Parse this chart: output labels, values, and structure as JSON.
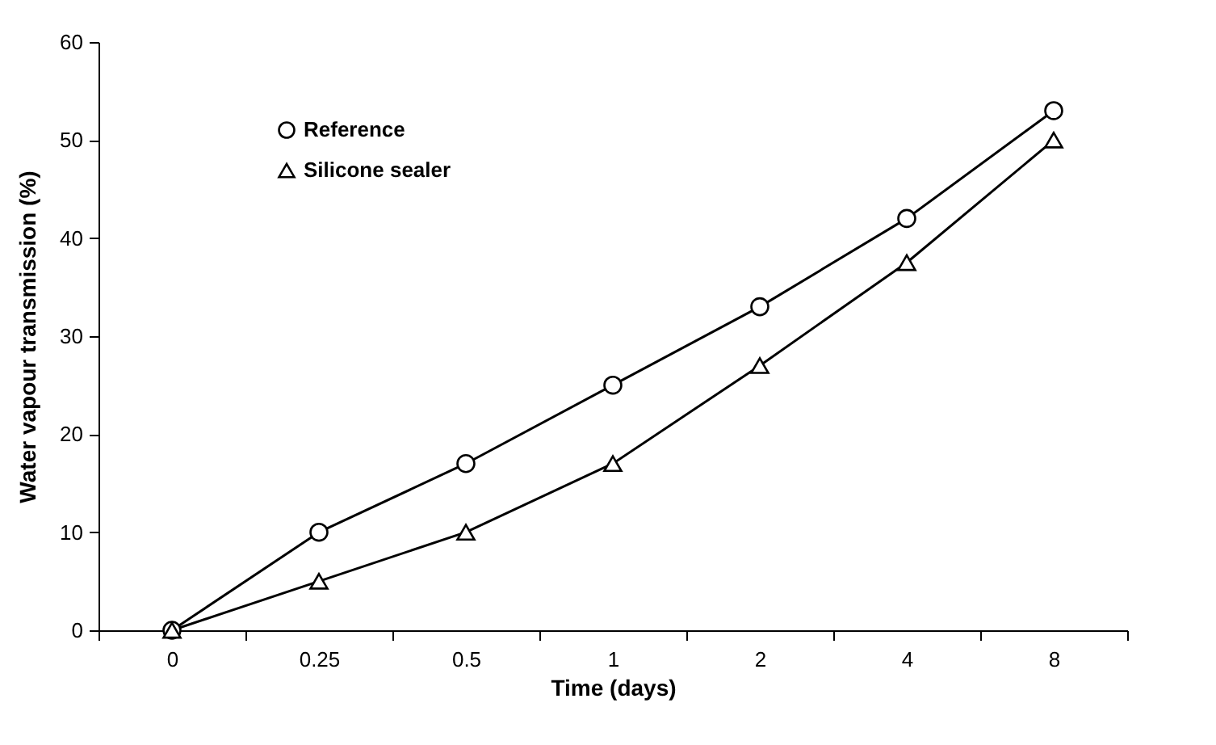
{
  "chart_data": {
    "type": "line",
    "xlabel": "Time (days)",
    "ylabel": "Water vapour transmission (%)",
    "categories": [
      "0",
      "0.25",
      "0.5",
      "1",
      "2",
      "4",
      "8"
    ],
    "ylim": [
      0,
      60
    ],
    "yticks": [
      0,
      10,
      20,
      30,
      40,
      50,
      60
    ],
    "grid": false,
    "legend": "top left",
    "line_style": "solid",
    "series": [
      {
        "name": "Reference",
        "color": "#000000",
        "marker": "circle",
        "values": [
          0,
          10,
          17,
          25,
          33,
          42,
          53
        ]
      },
      {
        "name": "Silicone sealer",
        "color": "#000000",
        "marker": "triangle",
        "values": [
          0,
          5,
          10,
          17,
          27,
          37.5,
          50
        ]
      }
    ]
  }
}
